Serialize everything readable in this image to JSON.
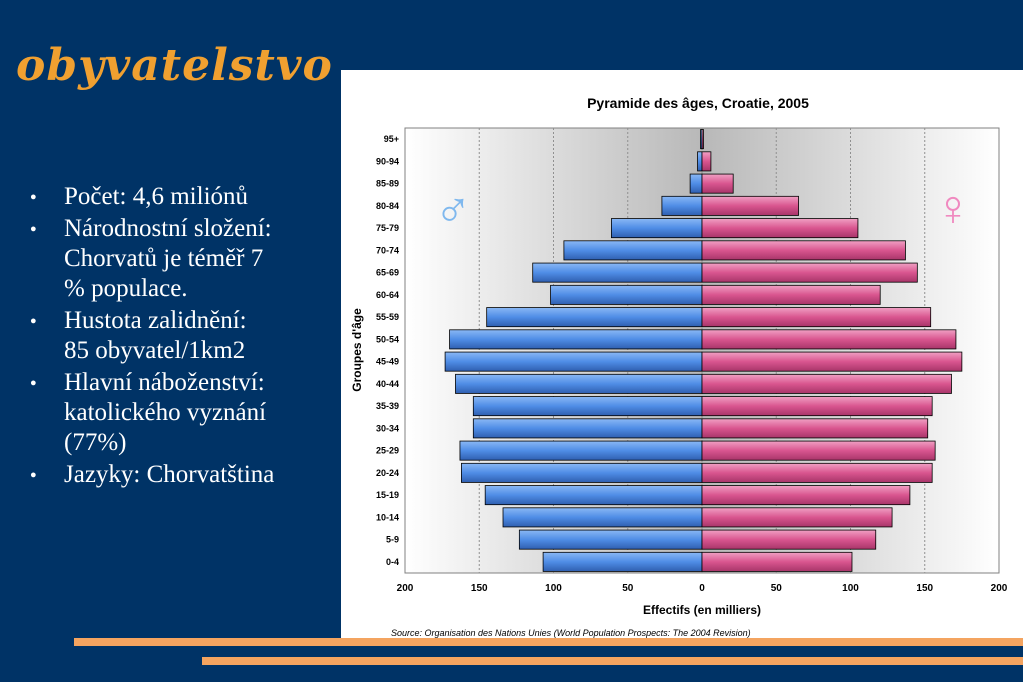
{
  "slide": {
    "title": "obyvatelstvo",
    "bullets": [
      {
        "line1": "Počet:  4,6 miliónů",
        "line2": ""
      },
      {
        "line1": "Národnostní složení:",
        "line2": "Chorvatů je téměř    7"
      },
      {
        "line1": "% populace.",
        "line2": ""
      },
      {
        "line1": "Hustota zalidnění:",
        "line2": "85 obyvatel/1km2"
      },
      {
        "line1": "Hlavní náboženství:",
        "line2": "katolického vyznání"
      },
      {
        "line1": "(77%)",
        "line2": ""
      },
      {
        "line1": "Jazyky: Chorvatština",
        "line2": ""
      }
    ]
  },
  "colors": {
    "background": "#003366",
    "title": "#f0a030",
    "accent_bars": "#f4a460",
    "male": "#4f8de6",
    "female": "#d9558f",
    "male_symbol": "#7fb8ee",
    "female_symbol": "#f08ac0"
  },
  "chart_data": {
    "type": "bar",
    "title": "Pyramide des âges, Croatie, 2005",
    "xlabel": "Effectifs (en milliers)",
    "ylabel": "Groupes d'âge",
    "source": "Source: Organisation des Nations Unies (World Population Prospects: The 2004 Revision)",
    "male_symbol": "♂",
    "female_symbol": "♀",
    "xlim": [
      -200,
      200
    ],
    "xticks": [
      -200,
      -150,
      -100,
      -50,
      0,
      50,
      100,
      150,
      200
    ],
    "xtick_labels": [
      "200",
      "150",
      "100",
      "50",
      "0",
      "50",
      "100",
      "150",
      "200"
    ],
    "grid": "vertical",
    "categories": [
      "95+",
      "90-94",
      "85-89",
      "80-84",
      "75-79",
      "70-74",
      "65-69",
      "60-64",
      "55-59",
      "50-54",
      "45-49",
      "40-44",
      "35-39",
      "30-34",
      "25-29",
      "20-24",
      "15-19",
      "10-14",
      "5-9",
      "0-4"
    ],
    "series": [
      {
        "name": "",
        "values": [
          1,
          3,
          8,
          27,
          61,
          93,
          114,
          102,
          145,
          170,
          173,
          166,
          154,
          154,
          163,
          162,
          146,
          134,
          123,
          107
        ]
      },
      {
        "name": "",
        "values": [
          1,
          6,
          21,
          65,
          105,
          137,
          145,
          120,
          154,
          171,
          175,
          168,
          155,
          152,
          157,
          155,
          140,
          128,
          117,
          101
        ]
      }
    ]
  }
}
